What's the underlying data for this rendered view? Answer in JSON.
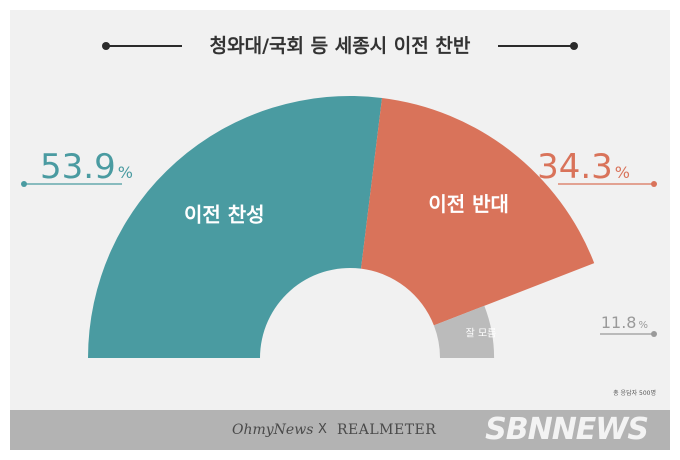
{
  "title": "청와대/국회 등 세종시 이전 찬반",
  "chart_data": {
    "type": "pie",
    "title": "청와대/국회 등 세종시 이전 찬반",
    "slices": [
      {
        "label": "이전 찬성",
        "value": 53.9,
        "display": "53.9",
        "unit": "%",
        "color": "#4a9ba1"
      },
      {
        "label": "이전 반대",
        "value": 34.3,
        "display": "34.3",
        "unit": "%",
        "color": "#d9735a"
      },
      {
        "label": "잘 모름",
        "value": 11.8,
        "display": "11.8",
        "unit": "%",
        "color": "#bbbbbb"
      }
    ]
  },
  "note": "총 응답자 500명",
  "footer": {
    "brand_a": "OhmyNews",
    "separator": "X",
    "brand_b": "REALMETER",
    "watermark": "SBNNEWS"
  }
}
